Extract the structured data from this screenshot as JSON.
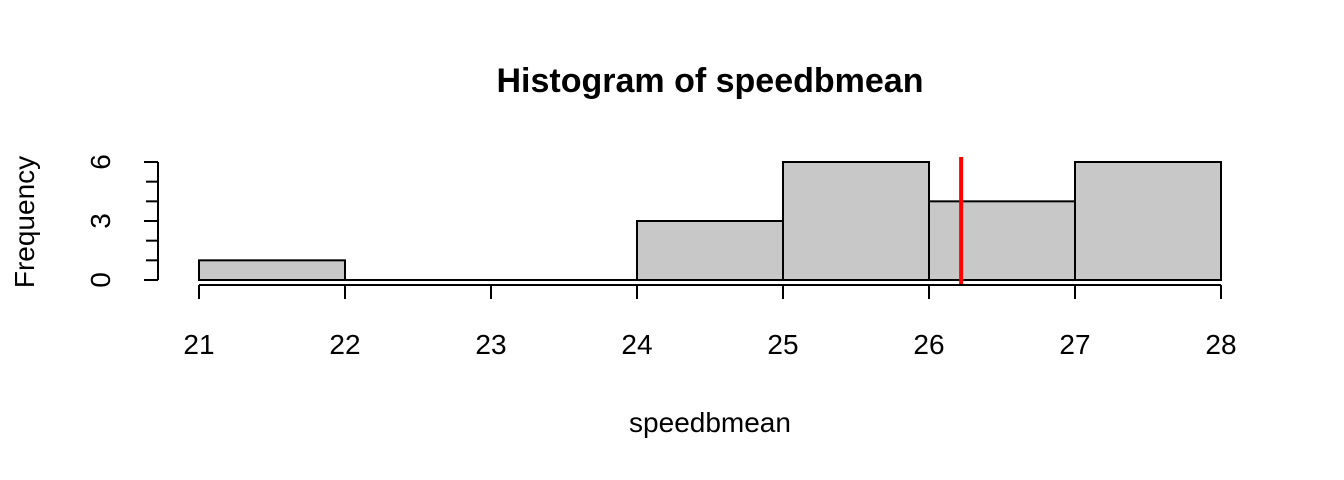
{
  "chart_data": {
    "type": "bar",
    "title": "Histogram of speedbmean",
    "xlabel": "speedbmean",
    "ylabel": "Frequency",
    "bins": [
      [
        21,
        22
      ],
      [
        22,
        23
      ],
      [
        23,
        24
      ],
      [
        24,
        25
      ],
      [
        25,
        26
      ],
      [
        26,
        27
      ],
      [
        27,
        28
      ]
    ],
    "values": [
      1,
      0,
      0,
      3,
      6,
      4,
      6
    ],
    "xlim": [
      21,
      28
    ],
    "ylim": [
      0,
      6
    ],
    "x_ticks": [
      21,
      22,
      23,
      24,
      25,
      26,
      27,
      28
    ],
    "y_ticks_labeled": [
      0,
      3,
      6
    ],
    "y_ticks_minor": [
      1,
      2,
      4,
      5
    ],
    "bar_color": "#c8c8c8",
    "reference_line": {
      "x": 26.22,
      "color": "#ff0000"
    },
    "grid": false,
    "legend": "none"
  }
}
